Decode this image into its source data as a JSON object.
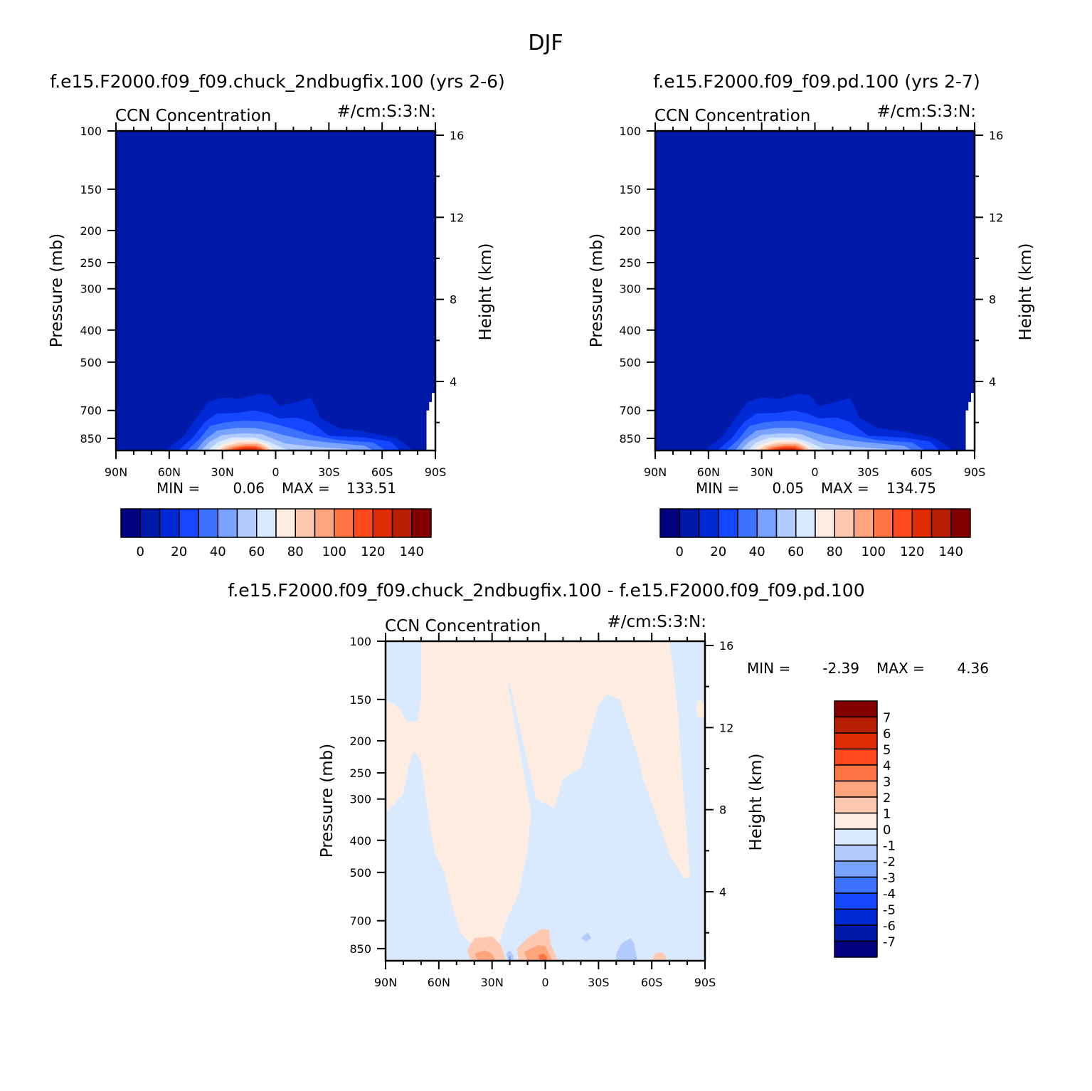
{
  "title": "DJF",
  "colors": {
    "scale_15": [
      "#000080",
      "#0019a9",
      "#0029d6",
      "#1447ff",
      "#3d72ff",
      "#7aa3ff",
      "#b1cbff",
      "#d9eaff",
      "#ffece0",
      "#ffc8b0",
      "#ffa57e",
      "#ff7544",
      "#ff4a1e",
      "#e02c05",
      "#b81f05",
      "#840000"
    ],
    "diff_scale": [
      "#000080",
      "#0019a9",
      "#0029d6",
      "#1447ff",
      "#3d72ff",
      "#7aa3ff",
      "#b1cbff",
      "#d9eaff",
      "#ffece0",
      "#ffc8b0",
      "#ffa57e",
      "#ff7544",
      "#ff4a1e",
      "#e02c05",
      "#b81f05",
      "#840000"
    ]
  },
  "panels": [
    {
      "id": "case",
      "header": "f.e15.F2000.f09_f09.chuck_2ndbugfix.100 (yrs 2-6)",
      "left_title": "CCN Concentration",
      "right_title": "#/cm:S:3:N:",
      "ylabel_left": "Pressure (mb)",
      "ylabel_right": "Height (km)",
      "min_label": "MIN =",
      "min_value": "0.06",
      "max_label": "MAX =",
      "max_value": "133.51",
      "colorbar_labels": [
        "0",
        "20",
        "40",
        "60",
        "80",
        "100",
        "120",
        "140"
      ]
    },
    {
      "id": "control",
      "header": "f.e15.F2000.f09_f09.pd.100 (yrs 2-7)",
      "left_title": "CCN Concentration",
      "right_title": "#/cm:S:3:N:",
      "ylabel_left": "Pressure (mb)",
      "ylabel_right": "Height (km)",
      "min_label": "MIN =",
      "min_value": "0.05",
      "max_label": "MAX =",
      "max_value": "134.75",
      "colorbar_labels": [
        "0",
        "20",
        "40",
        "60",
        "80",
        "100",
        "120",
        "140"
      ]
    },
    {
      "id": "diff",
      "header": "f.e15.F2000.f09_f09.chuck_2ndbugfix.100 - f.e15.F2000.f09_f09.pd.100",
      "left_title": "CCN Concentration",
      "right_title": "#/cm:S:3:N:",
      "ylabel_left": "Pressure (mb)",
      "ylabel_right": "Height (km)",
      "min_label": "MIN =",
      "min_value": "-2.39",
      "max_label": "MAX =",
      "max_value": "4.36",
      "colorbar_labels": [
        "7",
        "6",
        "5",
        "4",
        "3",
        "2",
        "1",
        "0",
        "-1",
        "-2",
        "-3",
        "-4",
        "-5",
        "-6",
        "-7"
      ]
    }
  ],
  "chart_data": [
    {
      "type": "heatmap",
      "title": "CCN Concentration",
      "units": "#/cm:S:3:N:",
      "xlabel": "",
      "ylabel": "Pressure (mb)",
      "y2label": "Height (km)",
      "x_ticks": [
        "90N",
        "60N",
        "30N",
        "0",
        "30S",
        "60S",
        "90S"
      ],
      "x_range": [
        90,
        -90
      ],
      "y_ticks": [
        100,
        150,
        200,
        250,
        300,
        400,
        500,
        700,
        850
      ],
      "y_range": [
        100,
        925
      ],
      "y_scale": "log",
      "y2_ticks": [
        16,
        12,
        8,
        4
      ],
      "min": 0.06,
      "max": 133.51,
      "levels": [
        0,
        10,
        20,
        30,
        40,
        50,
        60,
        70,
        80,
        90,
        100,
        110,
        120,
        130,
        140
      ],
      "max_location": {
        "lat": 15,
        "pressure": 900
      }
    },
    {
      "type": "heatmap",
      "title": "CCN Concentration",
      "units": "#/cm:S:3:N:",
      "xlabel": "",
      "ylabel": "Pressure (mb)",
      "y2label": "Height (km)",
      "x_ticks": [
        "90N",
        "60N",
        "30N",
        "0",
        "30S",
        "60S",
        "90S"
      ],
      "x_range": [
        90,
        -90
      ],
      "y_ticks": [
        100,
        150,
        200,
        250,
        300,
        400,
        500,
        700,
        850
      ],
      "y_range": [
        100,
        925
      ],
      "y_scale": "log",
      "y2_ticks": [
        16,
        12,
        8,
        4
      ],
      "min": 0.05,
      "max": 134.75,
      "levels": [
        0,
        10,
        20,
        30,
        40,
        50,
        60,
        70,
        80,
        90,
        100,
        110,
        120,
        130,
        140
      ],
      "max_location": {
        "lat": 15,
        "pressure": 900
      }
    },
    {
      "type": "heatmap",
      "title": "CCN Concentration",
      "units": "#/cm:S:3:N:",
      "xlabel": "",
      "ylabel": "Pressure (mb)",
      "y2label": "Height (km)",
      "x_ticks": [
        "90N",
        "60N",
        "30N",
        "0",
        "30S",
        "60S",
        "90S"
      ],
      "x_range": [
        90,
        -90
      ],
      "y_ticks": [
        100,
        150,
        200,
        250,
        300,
        400,
        500,
        700,
        850
      ],
      "y_range": [
        100,
        925
      ],
      "y_scale": "log",
      "y2_ticks": [
        16,
        12,
        8,
        4
      ],
      "min": -2.39,
      "max": 4.36,
      "levels": [
        -7,
        -6,
        -5,
        -4,
        -3,
        -2,
        -1,
        0,
        1,
        2,
        3,
        4,
        5,
        6,
        7
      ]
    }
  ]
}
